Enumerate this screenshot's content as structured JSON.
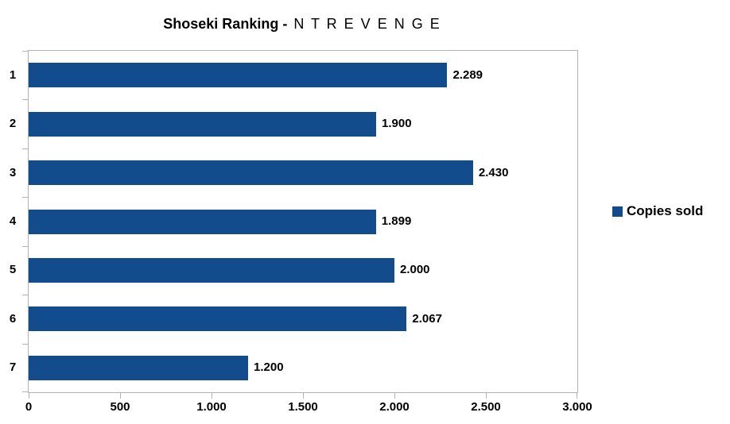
{
  "title": {
    "main": "Shoseki Ranking -",
    "suffix": "N T R E V E N G E"
  },
  "legend": {
    "label": "Copies sold"
  },
  "colors": {
    "bar": "#134C8D",
    "axis": "#B3B3B3",
    "text": "#000000",
    "background": "#FFFFFF"
  },
  "chart_data": {
    "type": "bar",
    "orientation": "horizontal",
    "title": "Shoseki Ranking - N T R E V E N G E",
    "categories": [
      "1",
      "2",
      "3",
      "4",
      "5",
      "6",
      "7"
    ],
    "series": [
      {
        "name": "Copies sold",
        "values": [
          2289,
          1900,
          2430,
          1899,
          2000,
          2067,
          1200
        ]
      }
    ],
    "value_labels": [
      "2.289",
      "1.900",
      "2.430",
      "1.899",
      "2.000",
      "2.067",
      "1.200"
    ],
    "xlabel": "",
    "ylabel": "",
    "xlim": [
      0,
      3000
    ],
    "x_ticks": [
      0,
      500,
      1000,
      1500,
      2000,
      2500,
      3000
    ],
    "x_tick_labels": [
      "0",
      "500",
      "1.000",
      "1.500",
      "2.000",
      "2.500",
      "3.000"
    ],
    "grid": false,
    "legend_position": "right"
  }
}
